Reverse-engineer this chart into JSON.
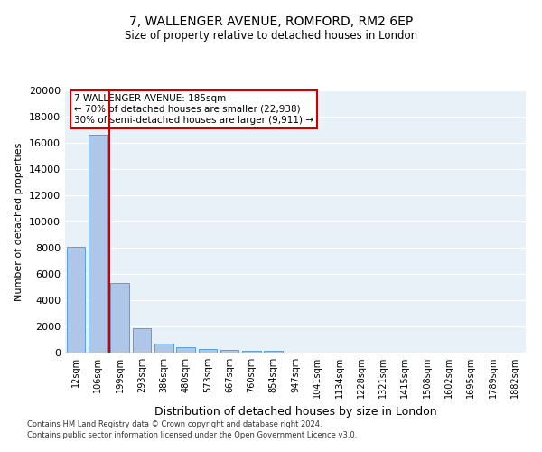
{
  "title": "7, WALLENGER AVENUE, ROMFORD, RM2 6EP",
  "subtitle": "Size of property relative to detached houses in London",
  "xlabel": "Distribution of detached houses by size in London",
  "ylabel": "Number of detached properties",
  "bar_color": "#aec6e8",
  "bar_edge_color": "#5a9fd4",
  "bg_color": "#e8f0f8",
  "categories": [
    "12sqm",
    "106sqm",
    "199sqm",
    "293sqm",
    "386sqm",
    "480sqm",
    "573sqm",
    "667sqm",
    "760sqm",
    "854sqm",
    "947sqm",
    "1041sqm",
    "1134sqm",
    "1228sqm",
    "1321sqm",
    "1415sqm",
    "1508sqm",
    "1602sqm",
    "1695sqm",
    "1789sqm",
    "1882sqm"
  ],
  "values": [
    8100,
    16600,
    5300,
    1850,
    700,
    380,
    280,
    220,
    170,
    130,
    0,
    0,
    0,
    0,
    0,
    0,
    0,
    0,
    0,
    0,
    0
  ],
  "ylim": [
    0,
    20000
  ],
  "yticks": [
    0,
    2000,
    4000,
    6000,
    8000,
    10000,
    12000,
    14000,
    16000,
    18000,
    20000
  ],
  "vline_x": 1.5,
  "annotation_text": "7 WALLENGER AVENUE: 185sqm\n← 70% of detached houses are smaller (22,938)\n30% of semi-detached houses are larger (9,911) →",
  "annotation_box_color": "#ffffff",
  "annotation_box_edge": "#cc0000",
  "vline_color": "#cc0000",
  "footer_line1": "Contains HM Land Registry data © Crown copyright and database right 2024.",
  "footer_line2": "Contains public sector information licensed under the Open Government Licence v3.0."
}
